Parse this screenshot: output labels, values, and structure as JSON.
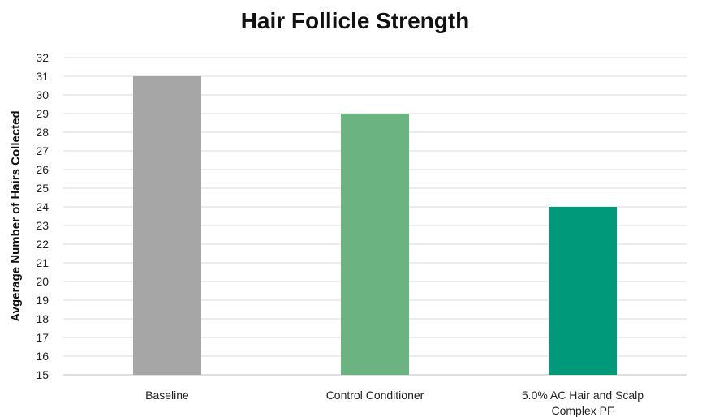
{
  "chart_data": {
    "type": "bar",
    "title": "Hair Follicle Strength",
    "xlabel": "",
    "ylabel": "Avgerage Number of Hairs Collected",
    "categories": [
      "Baseline",
      "Control Conditioner",
      "5.0% AC Hair and Scalp Complex PF"
    ],
    "values": [
      31,
      29,
      24
    ],
    "colors": [
      "#a6a6a6",
      "#6bb380",
      "#009a7a"
    ],
    "ylim": [
      15,
      32
    ],
    "yticks": [
      15,
      16,
      17,
      18,
      19,
      20,
      21,
      22,
      23,
      24,
      25,
      26,
      27,
      28,
      29,
      30,
      31,
      32
    ],
    "grid": true,
    "legend": "none"
  }
}
